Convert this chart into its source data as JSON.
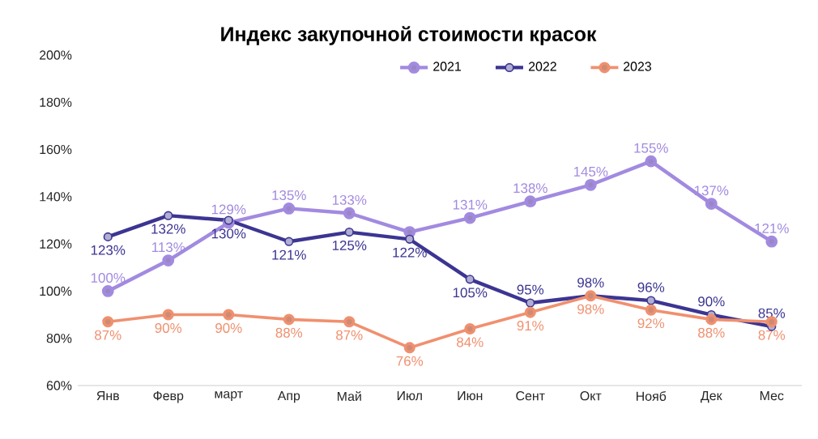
{
  "chart_data": {
    "type": "line",
    "title": "Индекс закупочной стоимости красок",
    "categories": [
      "Янв",
      "Февр",
      "март",
      "Апр",
      "Май",
      "Июл",
      "Июн",
      "Сент",
      "Окт",
      "Нояб",
      "Дек",
      "Мес"
    ],
    "series": [
      {
        "name": "2021",
        "color": "#a28ae0",
        "values": [
          100,
          113,
          129,
          135,
          133,
          125,
          131,
          138,
          145,
          155,
          137,
          121
        ],
        "value_labels": [
          "100%",
          "113%",
          "129%",
          "135%",
          "133%",
          null,
          "131%",
          "138%",
          "145%",
          "155%",
          "137%",
          "121%"
        ]
      },
      {
        "name": "2022",
        "color": "#3c3592",
        "values": [
          123,
          132,
          130,
          121,
          125,
          122,
          105,
          95,
          98,
          96,
          90,
          85
        ],
        "value_labels": [
          "123%",
          "132%",
          "130%",
          "121%",
          "125%",
          "122%",
          "105%",
          "95%",
          "98%",
          "96%",
          "90%",
          "85%"
        ]
      },
      {
        "name": "2023",
        "color": "#f0906f",
        "values": [
          87,
          90,
          90,
          88,
          87,
          76,
          84,
          91,
          98,
          92,
          88,
          87
        ],
        "value_labels": [
          "87%",
          "90%",
          "90%",
          "88%",
          "87%",
          "76%",
          "84%",
          "91%",
          "98%",
          "92%",
          "88%",
          "87%"
        ]
      }
    ],
    "ylim": [
      60,
      200
    ],
    "yticks": [
      {
        "value": 60,
        "label": "60%"
      },
      {
        "value": 80,
        "label": "80%"
      },
      {
        "value": 100,
        "label": "100%"
      },
      {
        "value": 120,
        "label": "120%"
      },
      {
        "value": 140,
        "label": "140%"
      },
      {
        "value": 160,
        "label": "160%"
      },
      {
        "value": 180,
        "label": "180%"
      },
      {
        "value": 200,
        "label": "200%"
      }
    ],
    "grid": false,
    "legend": "top",
    "marker": "circle",
    "line_style": "solid"
  }
}
